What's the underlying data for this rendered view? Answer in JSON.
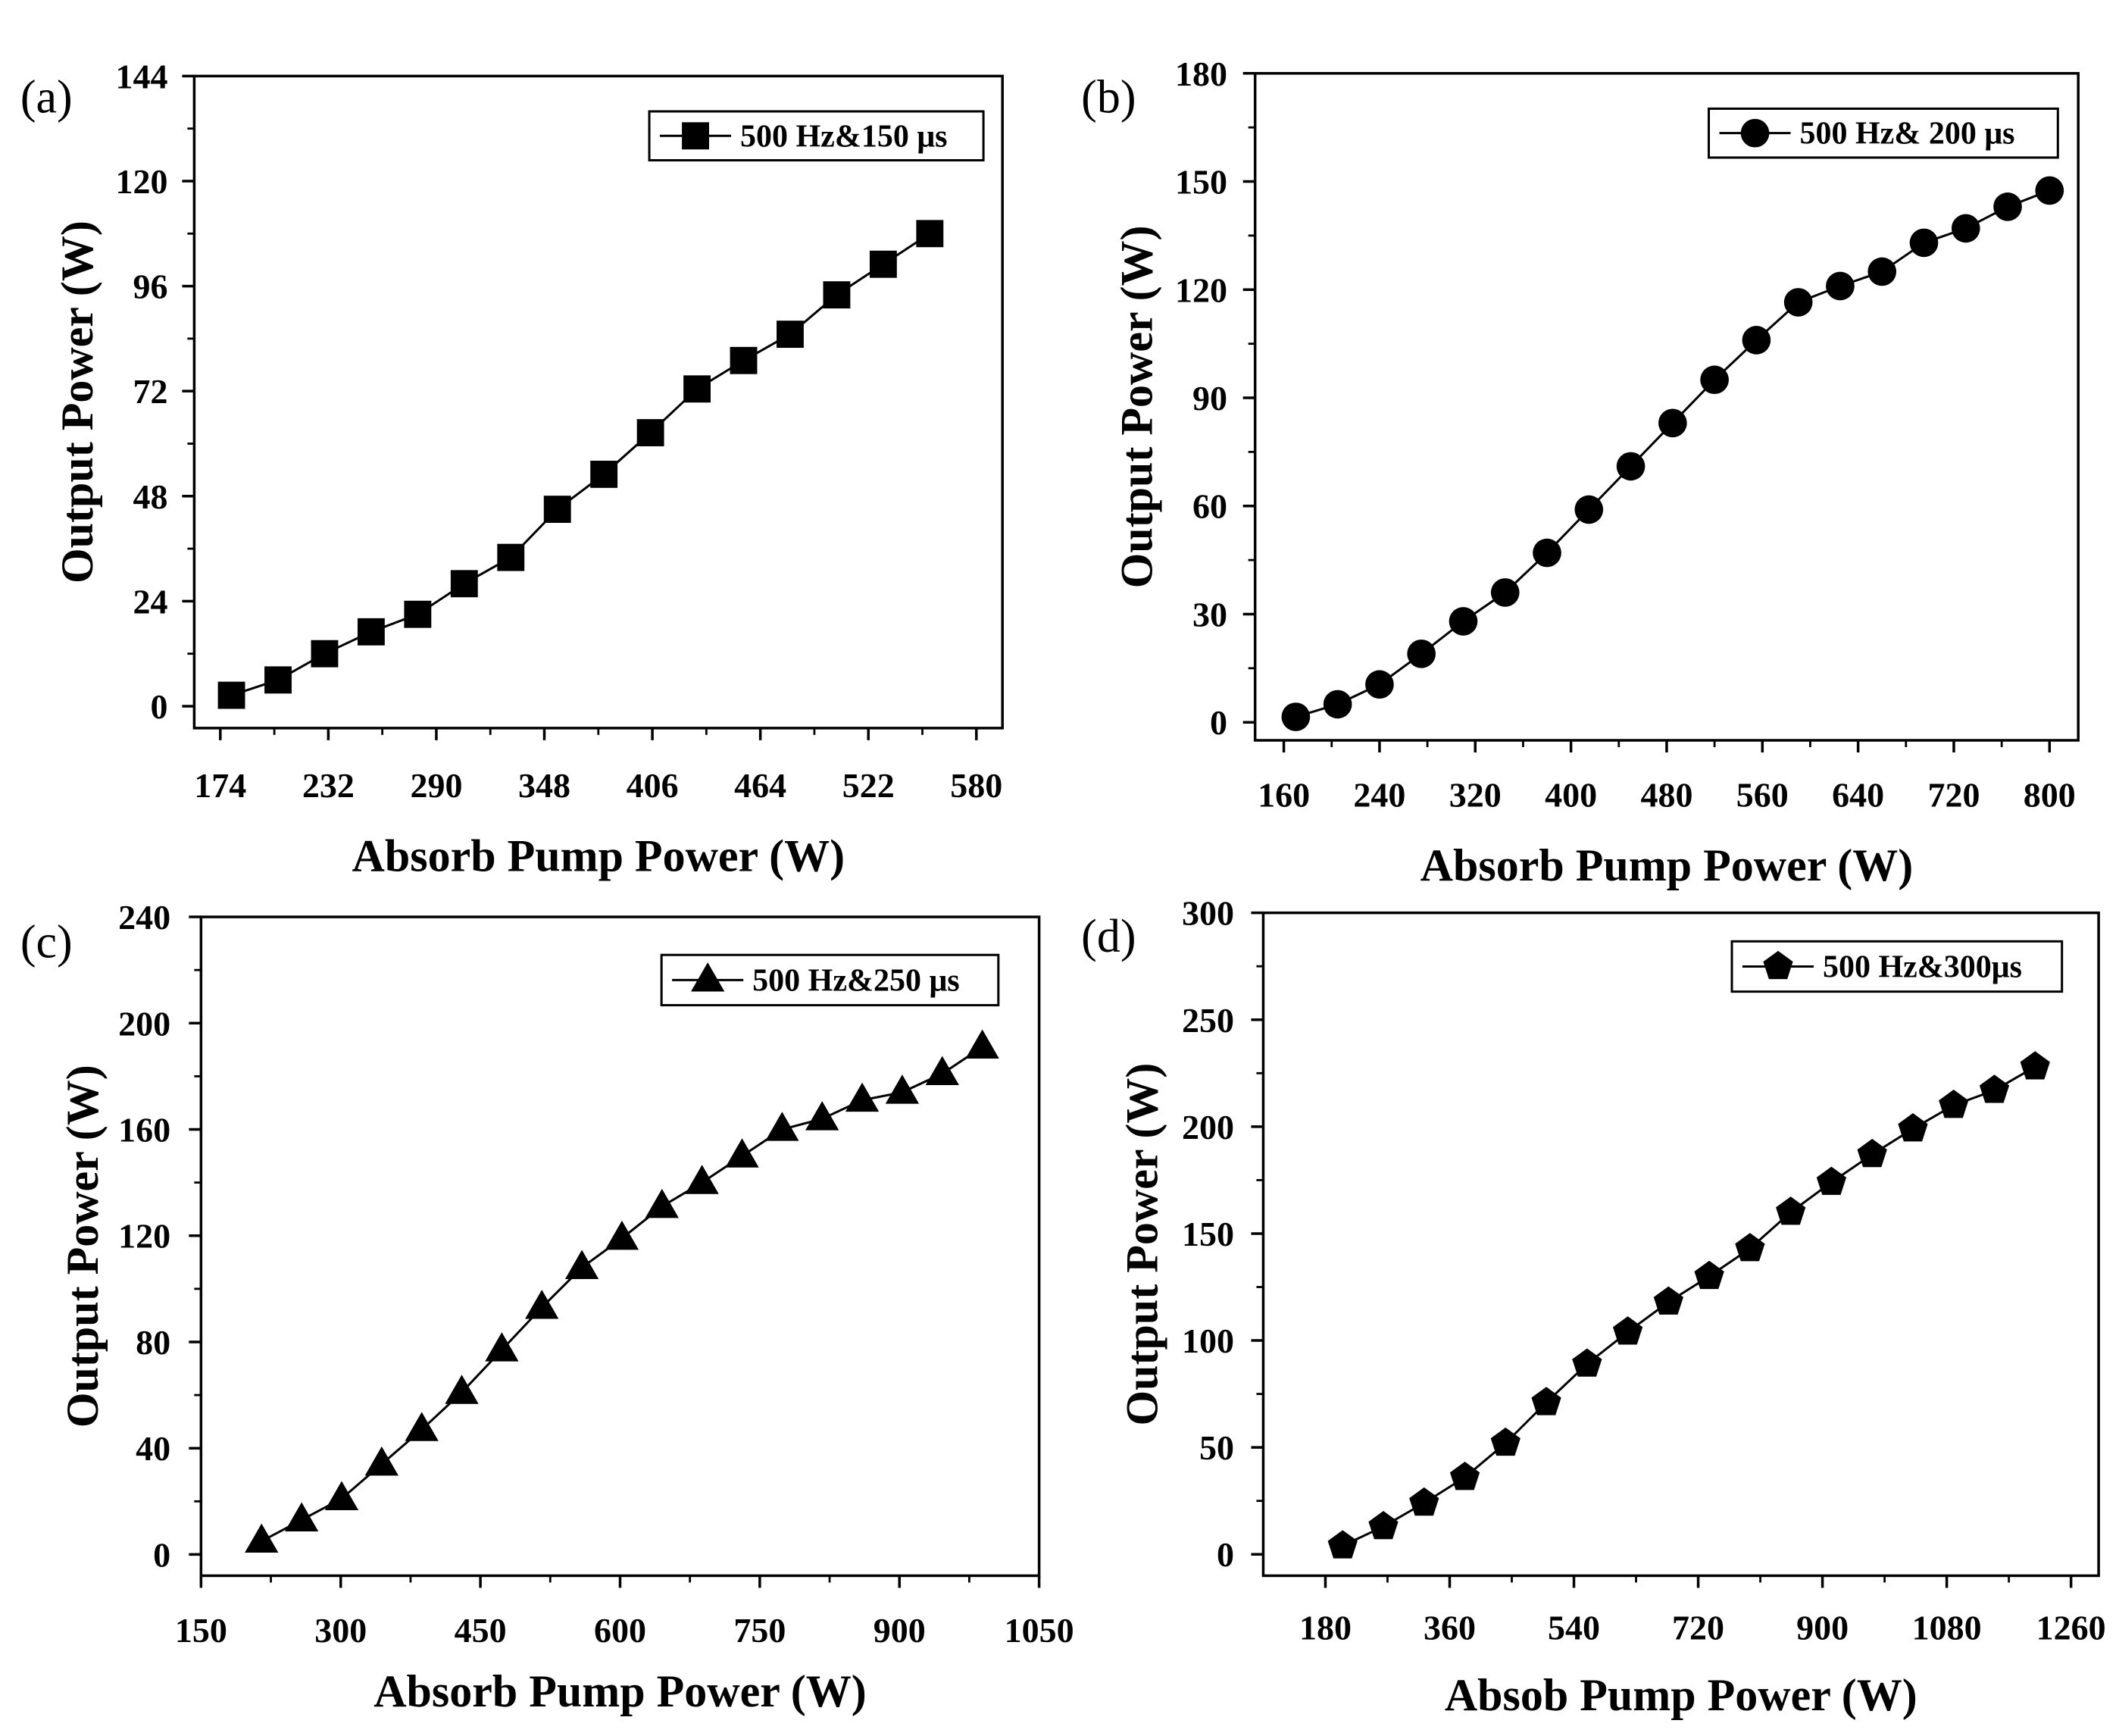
{
  "chart_data": [
    {
      "panel_label": "(a)",
      "type": "line",
      "marker": "square",
      "xlabel": "Absorb Pump Power (W)",
      "ylabel": "Output Power (W)",
      "xlim": [
        160,
        594
      ],
      "ylim": [
        -5,
        144
      ],
      "xticks": [
        174,
        232,
        290,
        348,
        406,
        464,
        522,
        580
      ],
      "yticks": [
        0,
        24,
        48,
        72,
        96,
        120,
        144
      ],
      "legend_position": "top-right",
      "series": [
        {
          "name": "500 Hz&150 μs",
          "x": [
            180,
            205,
            230,
            255,
            280,
            305,
            330,
            355,
            380,
            405,
            430,
            455,
            480,
            505,
            530,
            555
          ],
          "y": [
            2.5,
            6.0,
            12.0,
            17.0,
            21.0,
            28.0,
            34.0,
            45.0,
            53.0,
            62.5,
            72.5,
            79.0,
            85.0,
            94.0,
            101.0,
            108.0
          ]
        }
      ]
    },
    {
      "panel_label": "(b)",
      "type": "line",
      "marker": "circle",
      "xlabel": "Absorb Pump Power (W)",
      "ylabel": "Output Power (W)",
      "xlim": [
        136,
        824
      ],
      "ylim": [
        -5,
        180
      ],
      "xticks": [
        160,
        240,
        320,
        400,
        480,
        560,
        640,
        720,
        800
      ],
      "yticks": [
        0,
        30,
        60,
        90,
        120,
        150,
        180
      ],
      "legend_position": "top-right",
      "series": [
        {
          "name": "500 Hz& 200 μs",
          "x": [
            170,
            205,
            240,
            275,
            310,
            345,
            380,
            415,
            450,
            485,
            520,
            555,
            590,
            625,
            660,
            695,
            730,
            765,
            800
          ],
          "y": [
            1.5,
            5.0,
            10.5,
            19.0,
            28.0,
            36.0,
            47.0,
            59.0,
            71.0,
            83.0,
            95.0,
            106.0,
            116.5,
            121.0,
            125.0,
            133.0,
            137.0,
            143.0,
            147.5
          ]
        }
      ]
    },
    {
      "panel_label": "(c)",
      "type": "line",
      "marker": "triangle",
      "xlabel": "Absorb Pump Power (W)",
      "ylabel": "Output Power (W)",
      "xlim": [
        150,
        1050
      ],
      "ylim": [
        -8,
        240
      ],
      "xticks": [
        150,
        300,
        450,
        600,
        750,
        900,
        1050
      ],
      "yticks": [
        0,
        40,
        80,
        120,
        160,
        200,
        240
      ],
      "legend_position": "top-right",
      "series": [
        {
          "name": "500 Hz&250 μs",
          "x": [
            215,
            258,
            301,
            344,
            387,
            430,
            473,
            516,
            559,
            602,
            645,
            688,
            731,
            774,
            817,
            860,
            903,
            946,
            989
          ],
          "y": [
            5.0,
            13.0,
            21.0,
            34.0,
            47.0,
            61.0,
            77.0,
            93.0,
            108.0,
            119.0,
            131.0,
            140.0,
            150.0,
            160.0,
            164.0,
            171.0,
            174.0,
            181.0,
            191.0
          ]
        }
      ]
    },
    {
      "panel_label": "(d)",
      "type": "line",
      "marker": "pentagon",
      "xlabel": "Absob Pump Power (W)",
      "ylabel": "Output Power (W)",
      "xlim": [
        90,
        1300
      ],
      "ylim": [
        -10,
        300
      ],
      "xticks": [
        180,
        360,
        540,
        720,
        900,
        1080,
        1260
      ],
      "yticks": [
        0,
        50,
        100,
        150,
        200,
        250,
        300
      ],
      "legend_position": "top-right",
      "series": [
        {
          "name": "500 Hz&300μs",
          "x": [
            205,
            264,
            323,
            382,
            441,
            500,
            559,
            618,
            677,
            736,
            795,
            854,
            913,
            972,
            1031,
            1090,
            1149,
            1208
          ],
          "y": [
            4.0,
            13.0,
            24.0,
            36.0,
            52.0,
            71.0,
            89.0,
            104.0,
            118.0,
            130.0,
            143.0,
            160.0,
            174.0,
            187.0,
            199.0,
            210.0,
            217.0,
            228.0
          ]
        }
      ]
    }
  ]
}
